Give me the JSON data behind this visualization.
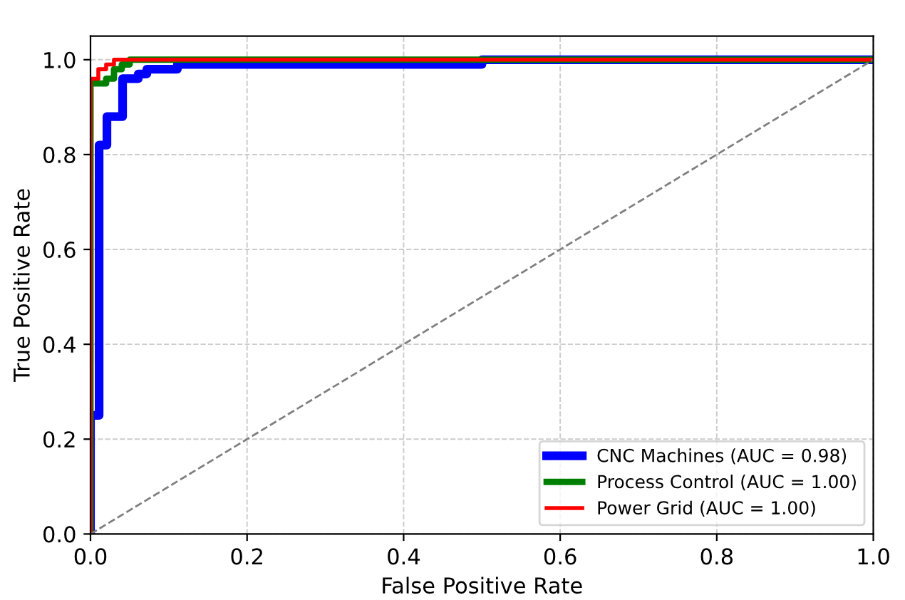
{
  "chart_data": {
    "type": "line",
    "xlabel": "False Positive Rate",
    "ylabel": "True Positive Rate",
    "xlim": [
      0,
      1
    ],
    "ylim": [
      0,
      1.05
    ],
    "xticks": [
      {
        "value": 0,
        "label": "0.0"
      },
      0.2,
      0.4,
      0.6,
      0.8,
      {
        "value": 1,
        "label": "1.0"
      }
    ],
    "yticks": [
      {
        "value": 0,
        "label": "0.0"
      },
      0.2,
      0.4,
      0.6,
      0.8,
      {
        "value": 1,
        "label": "1.0"
      }
    ],
    "grid": true,
    "legend": "bottom right",
    "series": [
      {
        "name": "CNC Machines (AUC = 0.98)",
        "color": "#0000ff",
        "x": [
          0,
          0,
          0.011,
          0.011,
          0.021,
          0.021,
          0.041,
          0.041,
          0.061,
          0.061,
          0.072,
          0.072,
          0.111,
          0.111,
          0.5,
          0.5,
          1
        ],
        "values": [
          0,
          0.25,
          0.25,
          0.82,
          0.82,
          0.88,
          0.88,
          0.96,
          0.96,
          0.97,
          0.97,
          0.98,
          0.98,
          0.99,
          0.99,
          1,
          1
        ]
      },
      {
        "name": "Process Control (AUC = 1.00)",
        "color": "#008000",
        "x": [
          0,
          0,
          0.02,
          0.02,
          0.03,
          0.03,
          0.04,
          0.04,
          0.05,
          0.05,
          1
        ],
        "values": [
          0,
          0.95,
          0.95,
          0.96,
          0.96,
          0.98,
          0.98,
          0.99,
          0.99,
          1,
          1
        ]
      },
      {
        "name": "Power Grid (AUC = 1.00)",
        "color": "#ff0000",
        "x": [
          0,
          0,
          0.01,
          0.01,
          0.02,
          0.02,
          0.03,
          0.03,
          1
        ],
        "values": [
          0,
          0.96,
          0.96,
          0.98,
          0.98,
          0.99,
          0.99,
          1,
          1
        ]
      },
      {
        "color": "#808080",
        "line_style": "dashed",
        "x": [
          0,
          1
        ],
        "values": [
          0,
          1
        ]
      }
    ]
  }
}
